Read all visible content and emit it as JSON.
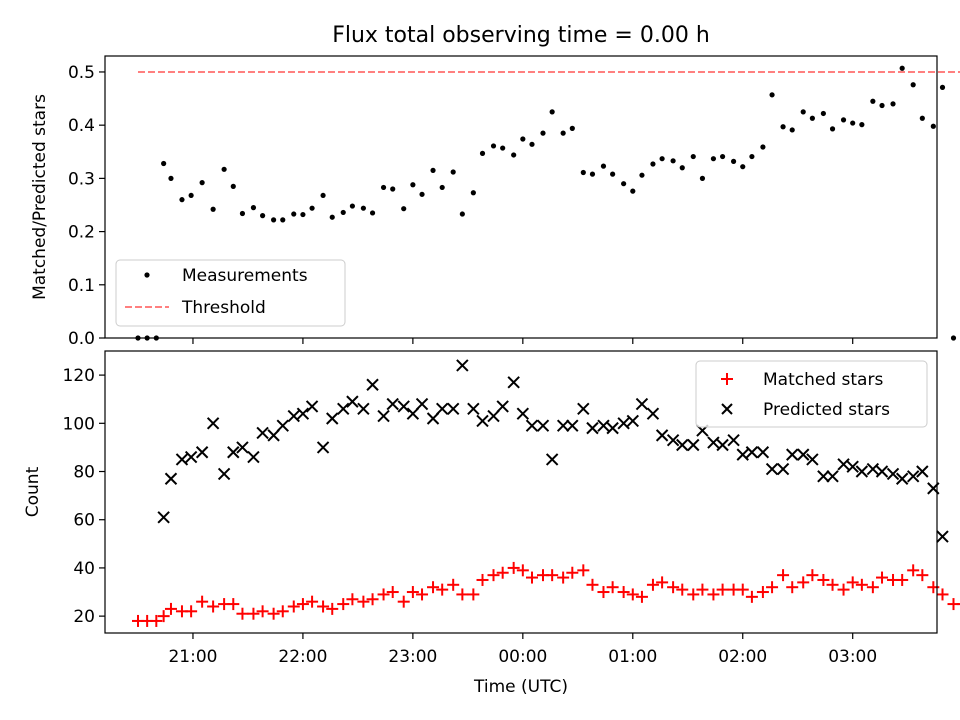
{
  "chart_data": [
    {
      "type": "scatter",
      "title": "Flux total observing time = 0.00 h",
      "xlabel": "",
      "ylabel": "Matched/Predicted stars",
      "xlim": [
        "20:12",
        "03:46"
      ],
      "ylim": [
        0,
        0.53
      ],
      "yticks": [
        "0.0",
        "0.1",
        "0.2",
        "0.3",
        "0.4",
        "0.5"
      ],
      "xticks": [
        "21:00",
        "22:00",
        "23:00",
        "00:00",
        "01:00",
        "02:00",
        "03:00"
      ],
      "legend_position": "lower-left",
      "series": [
        {
          "name": "Measurements",
          "kind": "scatter",
          "marker": "dot",
          "color": "#000000",
          "points": [
            [
              "20:30",
              0
            ],
            [
              "20:35",
              0
            ],
            [
              "20:40",
              0
            ],
            [
              "20:44",
              0.328
            ],
            [
              "20:48",
              0.3
            ],
            [
              "20:54",
              0.26
            ],
            [
              "20:59",
              0.268
            ],
            [
              "21:05",
              0.292
            ],
            [
              "21:11",
              0.242
            ],
            [
              "21:17",
              0.317
            ],
            [
              "21:22",
              0.285
            ],
            [
              "21:27",
              0.234
            ],
            [
              "21:33",
              0.245
            ],
            [
              "21:38",
              0.23
            ],
            [
              "21:44",
              0.222
            ],
            [
              "21:49",
              0.222
            ],
            [
              "21:55",
              0.233
            ],
            [
              "22:00",
              0.232
            ],
            [
              "22:05",
              0.244
            ],
            [
              "22:11",
              0.268
            ],
            [
              "22:16",
              0.227
            ],
            [
              "22:22",
              0.236
            ],
            [
              "22:27",
              0.248
            ],
            [
              "22:33",
              0.244
            ],
            [
              "22:38",
              0.235
            ],
            [
              "22:44",
              0.283
            ],
            [
              "22:49",
              0.28
            ],
            [
              "22:55",
              0.243
            ],
            [
              "23:00",
              0.288
            ],
            [
              "23:05",
              0.27
            ],
            [
              "23:11",
              0.315
            ],
            [
              "23:16",
              0.283
            ],
            [
              "23:22",
              0.312
            ],
            [
              "23:27",
              0.233
            ],
            [
              "23:33",
              0.273
            ],
            [
              "23:38",
              0.347
            ],
            [
              "23:44",
              0.361
            ],
            [
              "23:49",
              0.357
            ],
            [
              "23:55",
              0.344
            ],
            [
              "24:00",
              0.374
            ],
            [
              "24:05",
              0.364
            ],
            [
              "24:11",
              0.385
            ],
            [
              "24:16",
              0.425
            ],
            [
              "24:22",
              0.385
            ],
            [
              "24:27",
              0.394
            ],
            [
              "24:33",
              0.311
            ],
            [
              "24:38",
              0.308
            ],
            [
              "24:44",
              0.323
            ],
            [
              "24:49",
              0.308
            ],
            [
              "24:55",
              0.29
            ],
            [
              "25:00",
              0.276
            ],
            [
              "25:05",
              0.306
            ],
            [
              "25:11",
              0.327
            ],
            [
              "25:16",
              0.337
            ],
            [
              "25:22",
              0.333
            ],
            [
              "25:27",
              0.32
            ],
            [
              "25:33",
              0.341
            ],
            [
              "25:38",
              0.3
            ],
            [
              "25:44",
              0.337
            ],
            [
              "25:49",
              0.341
            ],
            [
              "25:55",
              0.332
            ],
            [
              "26:00",
              0.322
            ],
            [
              "26:05",
              0.341
            ],
            [
              "26:11",
              0.359
            ],
            [
              "26:16",
              0.457
            ],
            [
              "26:22",
              0.397
            ],
            [
              "26:27",
              0.391
            ],
            [
              "26:33",
              0.425
            ],
            [
              "26:38",
              0.413
            ],
            [
              "26:44",
              0.422
            ],
            [
              "26:49",
              0.393
            ],
            [
              "26:55",
              0.41
            ],
            [
              "27:00",
              0.404
            ],
            [
              "27:05",
              0.401
            ],
            [
              "27:11",
              0.445
            ],
            [
              "27:16",
              0.437
            ],
            [
              "27:22",
              0.44
            ],
            [
              "27:27",
              0.507
            ],
            [
              "27:33",
              0.476
            ],
            [
              "27:38",
              0.413
            ],
            [
              "27:44",
              0.398
            ],
            [
              "27:49",
              0.471
            ],
            [
              "27:55",
              0
            ],
            [
              "28:00",
              0
            ]
          ]
        },
        {
          "name": "Threshold",
          "kind": "line",
          "dash": "dashed",
          "color": "#ff7f7f",
          "points": [
            [
              "20:30",
              0.5
            ],
            [
              "28:33",
              0.5
            ]
          ]
        }
      ]
    },
    {
      "type": "scatter",
      "title": "",
      "xlabel": "Time (UTC)",
      "ylabel": "Count",
      "xlim": [
        "20:12",
        "03:46"
      ],
      "ylim": [
        13,
        130
      ],
      "yticks": [
        "20",
        "40",
        "60",
        "80",
        "100",
        "120"
      ],
      "xticks": [
        "21:00",
        "22:00",
        "23:00",
        "00:00",
        "01:00",
        "02:00",
        "03:00"
      ],
      "legend_position": "upper-right",
      "series": [
        {
          "name": "Matched stars",
          "kind": "scatter",
          "marker": "plus",
          "color": "#ff0000",
          "points": [
            [
              "20:30",
              18
            ],
            [
              "20:35",
              18
            ],
            [
              "20:40",
              18
            ],
            [
              "20:44",
              20
            ],
            [
              "20:48",
              23
            ],
            [
              "20:54",
              22
            ],
            [
              "20:59",
              22
            ],
            [
              "21:05",
              26
            ],
            [
              "21:11",
              24
            ],
            [
              "21:17",
              25
            ],
            [
              "21:22",
              25
            ],
            [
              "21:27",
              21
            ],
            [
              "21:33",
              21
            ],
            [
              "21:38",
              22
            ],
            [
              "21:44",
              21
            ],
            [
              "21:49",
              22
            ],
            [
              "21:55",
              24
            ],
            [
              "22:00",
              25
            ],
            [
              "22:05",
              26
            ],
            [
              "22:11",
              24
            ],
            [
              "22:16",
              23
            ],
            [
              "22:22",
              25
            ],
            [
              "22:27",
              27
            ],
            [
              "22:33",
              26
            ],
            [
              "22:38",
              27
            ],
            [
              "22:44",
              29
            ],
            [
              "22:49",
              30
            ],
            [
              "22:55",
              26
            ],
            [
              "23:00",
              30
            ],
            [
              "23:05",
              29
            ],
            [
              "23:11",
              32
            ],
            [
              "23:16",
              31
            ],
            [
              "23:22",
              33
            ],
            [
              "23:27",
              29
            ],
            [
              "23:33",
              29
            ],
            [
              "23:38",
              35
            ],
            [
              "23:44",
              37
            ],
            [
              "23:49",
              38
            ],
            [
              "23:55",
              40
            ],
            [
              "24:00",
              39
            ],
            [
              "24:05",
              36
            ],
            [
              "24:11",
              37
            ],
            [
              "24:16",
              37
            ],
            [
              "24:22",
              36
            ],
            [
              "24:27",
              38
            ],
            [
              "24:33",
              39
            ],
            [
              "24:38",
              33
            ],
            [
              "24:44",
              30
            ],
            [
              "24:49",
              32
            ],
            [
              "24:55",
              30
            ],
            [
              "25:00",
              29
            ],
            [
              "25:05",
              28
            ],
            [
              "25:11",
              33
            ],
            [
              "25:16",
              34
            ],
            [
              "25:22",
              32
            ],
            [
              "25:27",
              31
            ],
            [
              "25:33",
              29
            ],
            [
              "25:38",
              31
            ],
            [
              "25:44",
              29
            ],
            [
              "25:49",
              31
            ],
            [
              "25:55",
              31
            ],
            [
              "26:00",
              31
            ],
            [
              "26:05",
              28
            ],
            [
              "26:11",
              30
            ],
            [
              "26:16",
              32
            ],
            [
              "26:22",
              37
            ],
            [
              "26:27",
              32
            ],
            [
              "26:33",
              34
            ],
            [
              "26:38",
              37
            ],
            [
              "26:44",
              35
            ],
            [
              "26:49",
              33
            ],
            [
              "26:55",
              31
            ],
            [
              "27:00",
              34
            ],
            [
              "27:05",
              33
            ],
            [
              "27:11",
              32
            ],
            [
              "27:16",
              36
            ],
            [
              "27:22",
              35
            ],
            [
              "27:27",
              35
            ],
            [
              "27:33",
              39
            ],
            [
              "27:38",
              37
            ],
            [
              "27:44",
              32
            ],
            [
              "27:49",
              29
            ],
            [
              "27:55",
              25
            ],
            [
              "28:00",
              25
            ],
            [
              "28:05",
              25
            ]
          ]
        },
        {
          "name": "Predicted stars",
          "kind": "scatter",
          "marker": "x",
          "color": "#000000",
          "points": [
            [
              "20:44",
              61
            ],
            [
              "20:48",
              77
            ],
            [
              "20:54",
              85
            ],
            [
              "20:59",
              86
            ],
            [
              "21:05",
              88
            ],
            [
              "21:11",
              100
            ],
            [
              "21:17",
              79
            ],
            [
              "21:22",
              88
            ],
            [
              "21:27",
              90
            ],
            [
              "21:33",
              86
            ],
            [
              "21:38",
              96
            ],
            [
              "21:44",
              95
            ],
            [
              "21:49",
              99
            ],
            [
              "21:55",
              103
            ],
            [
              "22:00",
              104
            ],
            [
              "22:05",
              107
            ],
            [
              "22:11",
              90
            ],
            [
              "22:16",
              102
            ],
            [
              "22:22",
              106
            ],
            [
              "22:27",
              109
            ],
            [
              "22:33",
              106
            ],
            [
              "22:38",
              116
            ],
            [
              "22:44",
              103
            ],
            [
              "22:49",
              108
            ],
            [
              "22:55",
              107
            ],
            [
              "23:00",
              104
            ],
            [
              "23:05",
              108
            ],
            [
              "23:11",
              102
            ],
            [
              "23:16",
              106
            ],
            [
              "23:22",
              106
            ],
            [
              "23:27",
              124
            ],
            [
              "23:33",
              106
            ],
            [
              "23:38",
              101
            ],
            [
              "23:44",
              103
            ],
            [
              "23:49",
              107
            ],
            [
              "23:55",
              117
            ],
            [
              "24:00",
              104
            ],
            [
              "24:05",
              99
            ],
            [
              "24:11",
              99
            ],
            [
              "24:16",
              85
            ],
            [
              "24:22",
              99
            ],
            [
              "24:27",
              99
            ],
            [
              "24:33",
              106
            ],
            [
              "24:38",
              98
            ],
            [
              "24:44",
              99
            ],
            [
              "24:49",
              98
            ],
            [
              "24:55",
              100
            ],
            [
              "25:00",
              101
            ],
            [
              "25:05",
              108
            ],
            [
              "25:11",
              104
            ],
            [
              "25:16",
              95
            ],
            [
              "25:22",
              93
            ],
            [
              "25:27",
              91
            ],
            [
              "25:33",
              91
            ],
            [
              "25:38",
              97
            ],
            [
              "25:44",
              92
            ],
            [
              "25:49",
              91
            ],
            [
              "25:55",
              93
            ],
            [
              "26:00",
              87
            ],
            [
              "26:05",
              88
            ],
            [
              "26:11",
              88
            ],
            [
              "26:16",
              81
            ],
            [
              "26:22",
              81
            ],
            [
              "26:27",
              87
            ],
            [
              "26:33",
              87
            ],
            [
              "26:38",
              85
            ],
            [
              "26:44",
              78
            ],
            [
              "26:49",
              78
            ],
            [
              "26:55",
              83
            ],
            [
              "27:00",
              82
            ],
            [
              "27:05",
              80
            ],
            [
              "27:11",
              81
            ],
            [
              "27:16",
              80
            ],
            [
              "27:22",
              79
            ],
            [
              "27:27",
              77
            ],
            [
              "27:33",
              78
            ],
            [
              "27:38",
              80
            ],
            [
              "27:44",
              73
            ],
            [
              "27:49",
              53
            ]
          ]
        }
      ]
    }
  ]
}
